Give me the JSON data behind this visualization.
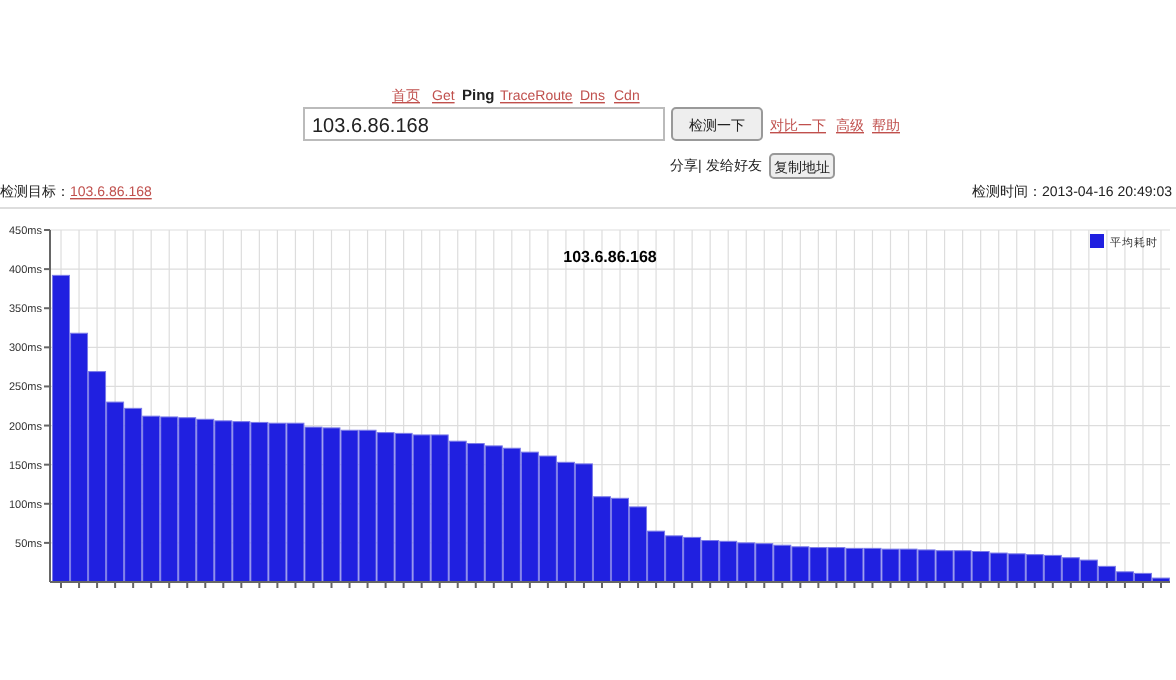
{
  "chart_data": {
    "type": "bar",
    "title": "103.6.86.168",
    "categories": [
      null,
      null,
      null,
      null,
      null,
      null,
      null,
      null,
      null,
      null,
      null,
      null,
      null,
      null,
      null,
      null,
      null,
      null,
      null,
      null,
      null,
      null,
      null,
      null,
      null,
      null,
      null,
      null,
      null,
      null,
      null,
      null,
      null,
      null,
      null,
      null,
      null,
      null,
      null,
      null,
      null,
      null,
      null,
      null,
      null,
      null,
      null,
      null,
      null,
      null,
      null,
      null,
      null,
      null,
      null,
      null,
      null,
      null,
      null,
      null,
      null,
      null
    ],
    "series": [
      {
        "name": "平均耗时",
        "color": "#2020e0",
        "values": [
          392,
          318,
          269,
          230,
          222,
          212,
          211,
          210,
          208,
          206,
          205,
          204,
          203,
          203,
          198,
          197,
          194,
          194,
          191,
          190,
          188,
          188,
          180,
          177,
          174,
          171,
          166,
          161,
          153,
          151,
          109,
          107,
          96,
          65,
          59,
          57,
          53,
          52,
          50,
          49,
          47,
          45,
          44,
          44,
          43,
          43,
          42,
          42,
          41,
          40,
          40,
          39,
          37,
          36,
          35,
          34,
          31,
          28,
          20,
          13,
          11,
          5
        ]
      }
    ],
    "ylim": [
      0,
      450
    ],
    "yticks": [
      {
        "value": 50,
        "label": "50ms"
      },
      {
        "value": 100,
        "label": "100ms"
      },
      {
        "value": 150,
        "label": "150ms"
      },
      {
        "value": 200,
        "label": "200ms"
      },
      {
        "value": 250,
        "label": "250ms"
      },
      {
        "value": 300,
        "label": "300ms"
      },
      {
        "value": 350,
        "label": "350ms"
      },
      {
        "value": 400,
        "label": "400ms"
      },
      {
        "value": 450,
        "label": "450ms"
      }
    ],
    "grid": true,
    "legend": "top right",
    "annotations": [
      "首页",
      "Get",
      "Ping",
      "TraceRoute",
      "Dns",
      "Cdn",
      "103.6.86.168",
      "检测一下",
      "对比一下",
      "高级",
      "帮助",
      "分享| 发给好友",
      "复制地址",
      "检测目标：103.6.86.168",
      "检测时间：2013-04-16 20:49:03"
    ]
  }
}
